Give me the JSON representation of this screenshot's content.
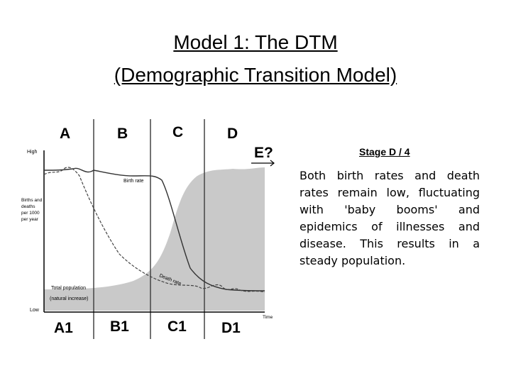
{
  "title": {
    "line1": "Model 1: The DTM",
    "line2": "(Demographic Transition Model)"
  },
  "diagram": {
    "stages_top": [
      "A",
      "B",
      "C",
      "D"
    ],
    "stage_next": "E?",
    "stages_bottom": [
      "A1",
      "B1",
      "C1",
      "D1"
    ],
    "y_high": "High",
    "y_low": "Low",
    "y_axis_label": [
      "Births and",
      "deaths",
      "per 1000",
      "per year"
    ],
    "x_axis_label": "Time",
    "birth_rate_label": "Birth rate",
    "death_rate_label": "Death rate",
    "total_population_label": "Total population",
    "natural_increase_label": "(natural increase)"
  },
  "side": {
    "heading": "Stage D / 4",
    "text": "Both birth rates and death rates remain low, fluctuating with 'baby booms' and epidemics of illnesses and disease. This results in a steady population."
  },
  "colors": {
    "population_fill": "#c9c9c9",
    "lines": "#333333"
  }
}
